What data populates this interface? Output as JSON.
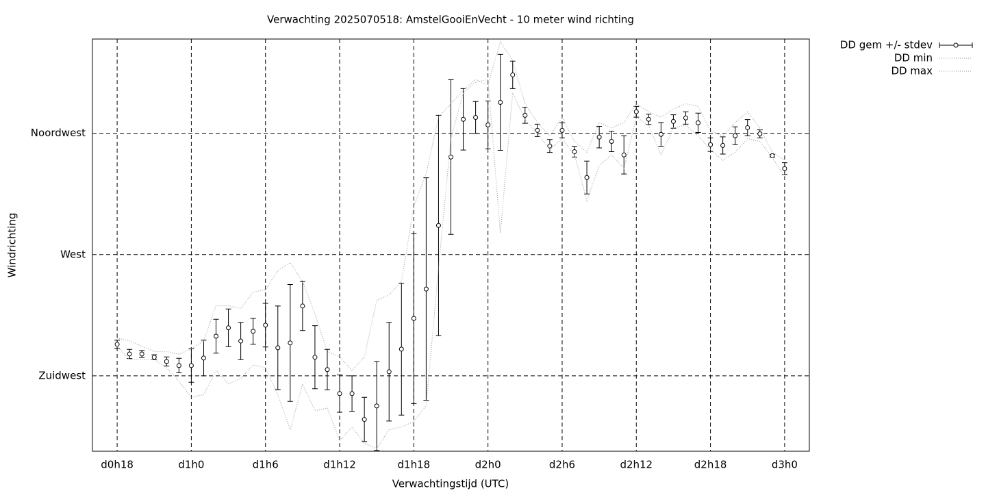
{
  "chart_data": {
    "type": "errorbar",
    "title": "Verwachting 2025070518: AmstelGooiEnVecht - 10 meter wind richting",
    "xlabel": "Verwachtingstijd (UTC)",
    "ylabel": "Windrichting",
    "x": [
      18,
      19,
      20,
      21,
      22,
      23,
      24,
      25,
      26,
      27,
      28,
      29,
      30,
      31,
      32,
      33,
      34,
      35,
      36,
      37,
      38,
      39,
      40,
      41,
      42,
      43,
      44,
      45,
      46,
      47,
      48,
      49,
      50,
      51,
      52,
      53,
      54,
      55,
      56,
      57,
      58,
      59,
      60,
      61,
      62,
      63,
      64,
      65,
      66,
      67,
      68,
      69,
      70,
      71,
      72
    ],
    "xlim": [
      16,
      74
    ],
    "xticks": [
      {
        "value": 18,
        "label": "d0h18"
      },
      {
        "value": 24,
        "label": "d1h0"
      },
      {
        "value": 30,
        "label": "d1h6"
      },
      {
        "value": 36,
        "label": "d1h12"
      },
      {
        "value": 42,
        "label": "d1h18"
      },
      {
        "value": 48,
        "label": "d2h0"
      },
      {
        "value": 54,
        "label": "d2h6"
      },
      {
        "value": 60,
        "label": "d2h12"
      },
      {
        "value": 66,
        "label": "d2h18"
      },
      {
        "value": 72,
        "label": "d3h0"
      }
    ],
    "ylim": [
      197,
      350
    ],
    "yticks": [
      {
        "value": 225,
        "label": "Zuidwest"
      },
      {
        "value": 270,
        "label": "West"
      },
      {
        "value": 315,
        "label": "Noordwest"
      }
    ],
    "grid": true,
    "legend": "outside-top-right",
    "series": [
      {
        "name": "DD gem +/- stdev",
        "color": "#000000",
        "values": [
          236.7,
          233.1,
          233.1,
          231.9,
          230.3,
          228.8,
          228.8,
          231.6,
          239.7,
          242.8,
          237.9,
          241.5,
          243.8,
          235.4,
          237.2,
          250.9,
          231.9,
          227.3,
          218.4,
          218.4,
          208.8,
          213.8,
          226.5,
          234.9,
          246.3,
          257.2,
          280.8,
          306.2,
          320.2,
          320.9,
          318.1,
          326.5,
          336.7,
          321.7,
          316.1,
          310.3,
          316.1,
          308.2,
          298.6,
          313.6,
          312,
          307,
          323,
          320.2,
          314.6,
          319.4,
          320.7,
          318.9,
          310.8,
          310.5,
          314.1,
          317.1,
          314.8,
          306.7,
          301.9
        ],
        "errors": [
          1.5,
          1.7,
          1.3,
          0.9,
          1.7,
          2.7,
          6.2,
          6.6,
          6.3,
          7,
          6.9,
          4.8,
          8.1,
          15.5,
          21.7,
          9.1,
          11.7,
          7.5,
          6.9,
          6.6,
          8.2,
          16.5,
          18.3,
          24.5,
          31.6,
          41.3,
          40.9,
          28.7,
          11.4,
          5.9,
          8.9,
          17.8,
          5.1,
          3,
          2.3,
          2.4,
          2.8,
          2,
          6.1,
          4,
          3.8,
          7.1,
          2,
          1.9,
          4.4,
          2.5,
          2.3,
          3.6,
          2.5,
          3.2,
          3.3,
          3,
          1.5,
          0.5,
          2.2
        ]
      },
      {
        "name": "DD min",
        "color": "#aaaaaa",
        "values": [
          236,
          231,
          231,
          231,
          228,
          223,
          217,
          218,
          227,
          222,
          224,
          229,
          228,
          218,
          205,
          222,
          212,
          213,
          201,
          206,
          200,
          198,
          205,
          206,
          208,
          214,
          265,
          313,
          330,
          334,
          335,
          278,
          330,
          320,
          315,
          309,
          313,
          307,
          290,
          303,
          307,
          302,
          321,
          318,
          307,
          317,
          318,
          314,
          309,
          305,
          308,
          313,
          312,
          306,
          299
        ]
      },
      {
        "name": "DD max",
        "color": "#aaaaaa",
        "values": [
          239,
          238,
          236,
          234,
          234,
          233,
          235,
          238,
          251,
          251,
          250,
          256,
          257,
          264,
          267,
          260,
          248,
          234,
          232,
          227,
          232,
          253,
          255,
          260,
          288,
          300,
          321,
          326,
          331,
          335,
          333,
          349,
          342,
          326,
          319,
          314,
          321,
          312,
          308,
          319,
          317,
          319,
          326,
          323,
          321,
          324,
          326,
          325,
          316,
          314,
          319,
          323,
          317,
          308,
          305
        ]
      }
    ]
  }
}
